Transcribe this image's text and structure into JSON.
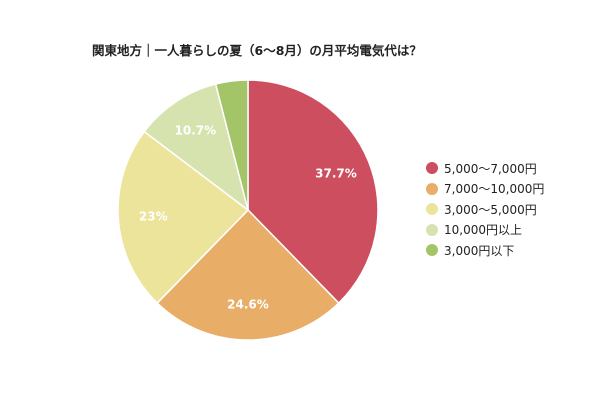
{
  "chart_data": {
    "type": "pie",
    "title": "関東地方｜一人暮らしの夏（6〜8月）の月平均電気代は？",
    "categories": [
      "5,000〜7,000円",
      "7,000〜10,000円",
      "3,000〜5,000円",
      "10,000円以上",
      "3,000円以下"
    ],
    "values": [
      37.7,
      24.6,
      23,
      10.7,
      4
    ],
    "data_labels": [
      "37.7%",
      "24.6%",
      "23%",
      "10.7%",
      ""
    ],
    "colors": [
      "#cd4f5f",
      "#e8ad67",
      "#ede49c",
      "#d6e3ae",
      "#a4c468"
    ],
    "legend_position": "right",
    "start": "top",
    "direction": "clockwise"
  }
}
